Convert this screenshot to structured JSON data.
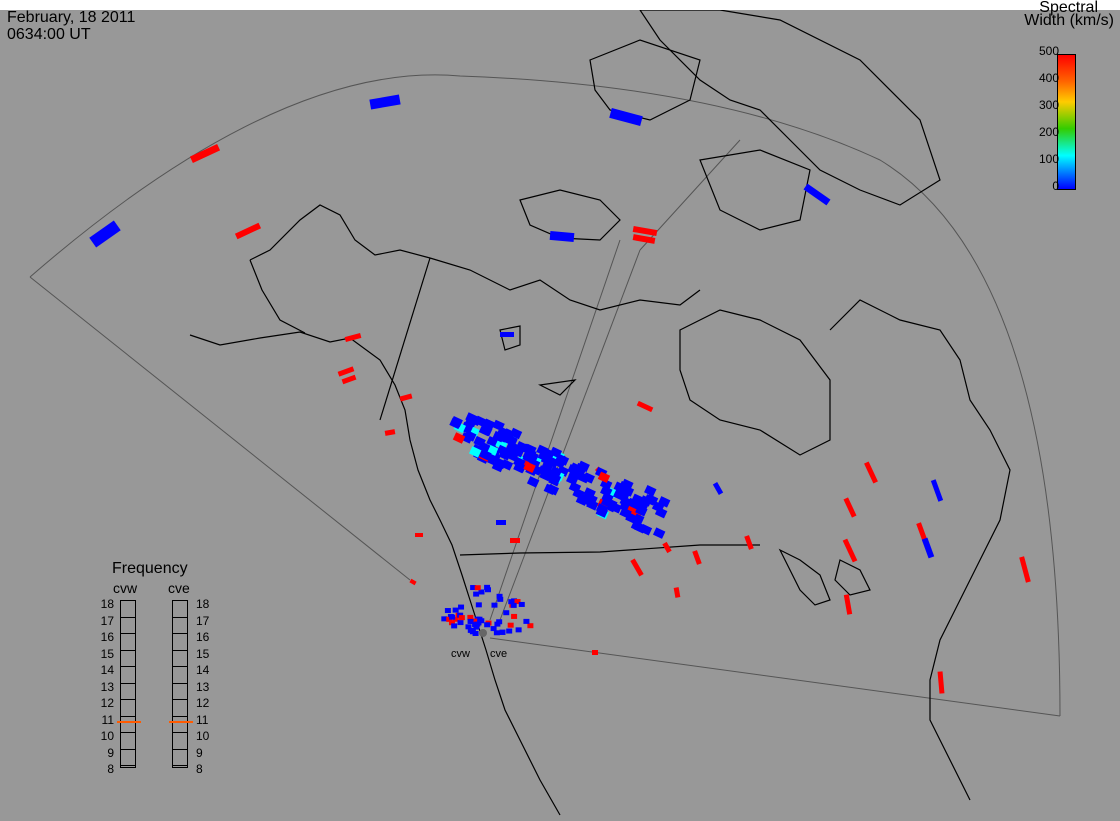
{
  "header": {
    "date": "February, 18 2011",
    "time": "0634:00 UT"
  },
  "colorbar": {
    "title_line1": "Spectral",
    "title_line2": "Width (km/s)",
    "ticks": [
      "500",
      "400",
      "300",
      "200",
      "100",
      "0"
    ],
    "colors": [
      "#ff0000",
      "#ffcc00",
      "#00cc00",
      "#00ffff",
      "#0000ff"
    ]
  },
  "radars": {
    "left_label": "cvw",
    "right_label": "cve"
  },
  "frequency": {
    "title": "Frequency",
    "col_left": "cvw",
    "col_right": "cve",
    "ticks": [
      "18",
      "17",
      "16",
      "15",
      "14",
      "13",
      "12",
      "11",
      "10",
      "9",
      "8"
    ],
    "cvw_value": 10.8,
    "cve_value": 10.8,
    "marker_color": "#ff5a00"
  }
}
